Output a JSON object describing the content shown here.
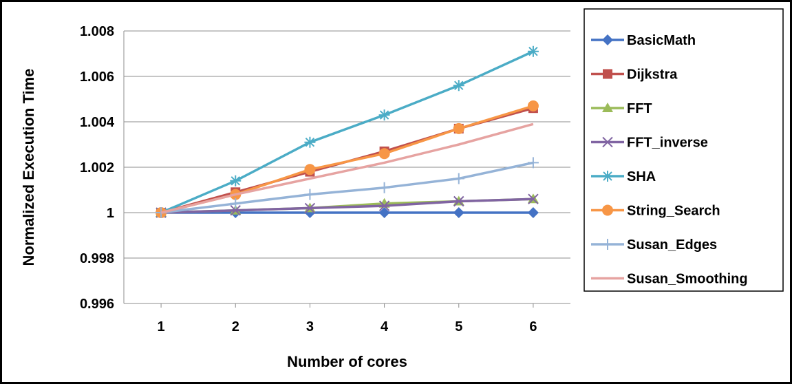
{
  "chart_data": {
    "type": "line",
    "xlabel": "Number of cores",
    "ylabel": "Normalized Execution Time",
    "x": [
      1,
      2,
      3,
      4,
      5,
      6
    ],
    "ylim": [
      0.996,
      1.008
    ],
    "yticks": [
      "0.996",
      "0.998",
      "1",
      "1.002",
      "1.004",
      "1.006",
      "1.008"
    ],
    "xticks": [
      "1",
      "2",
      "3",
      "4",
      "5",
      "6"
    ],
    "grid": "horizontal",
    "legend": "right",
    "series": [
      {
        "name": "BasicMath",
        "color": "#4472c4",
        "marker": "diamond",
        "values": [
          1,
          1,
          1,
          1,
          1,
          1
        ]
      },
      {
        "name": "Dijkstra",
        "color": "#c0504d",
        "marker": "square",
        "values": [
          1,
          1.0009,
          1.0018,
          1.0027,
          1.0037,
          1.0046
        ]
      },
      {
        "name": "FFT",
        "color": "#9bbb59",
        "marker": "triangle",
        "values": [
          1,
          1.0001,
          1.0002,
          1.0004,
          1.0005,
          1.0006
        ]
      },
      {
        "name": "FFT_inverse",
        "color": "#8064a2",
        "marker": "x",
        "values": [
          1,
          1.0001,
          1.0002,
          1.0003,
          1.0005,
          1.0006
        ]
      },
      {
        "name": "SHA",
        "color": "#4bacc6",
        "marker": "star",
        "values": [
          1,
          1.0014,
          1.0031,
          1.0043,
          1.0056,
          1.0071
        ]
      },
      {
        "name": "String_Search",
        "color": "#f79646",
        "marker": "circle",
        "values": [
          1,
          1.0008,
          1.0019,
          1.0026,
          1.0037,
          1.0047
        ]
      },
      {
        "name": "Susan_Edges",
        "color": "#95b3d7",
        "marker": "plus",
        "values": [
          1,
          1.0004,
          1.0008,
          1.0011,
          1.0015,
          1.0022
        ]
      },
      {
        "name": "Susan_Smoothing",
        "color": "#e6a3a1",
        "marker": "none",
        "values": [
          1,
          1.0008,
          1.0015,
          1.0022,
          1.003,
          1.0039
        ]
      }
    ]
  }
}
